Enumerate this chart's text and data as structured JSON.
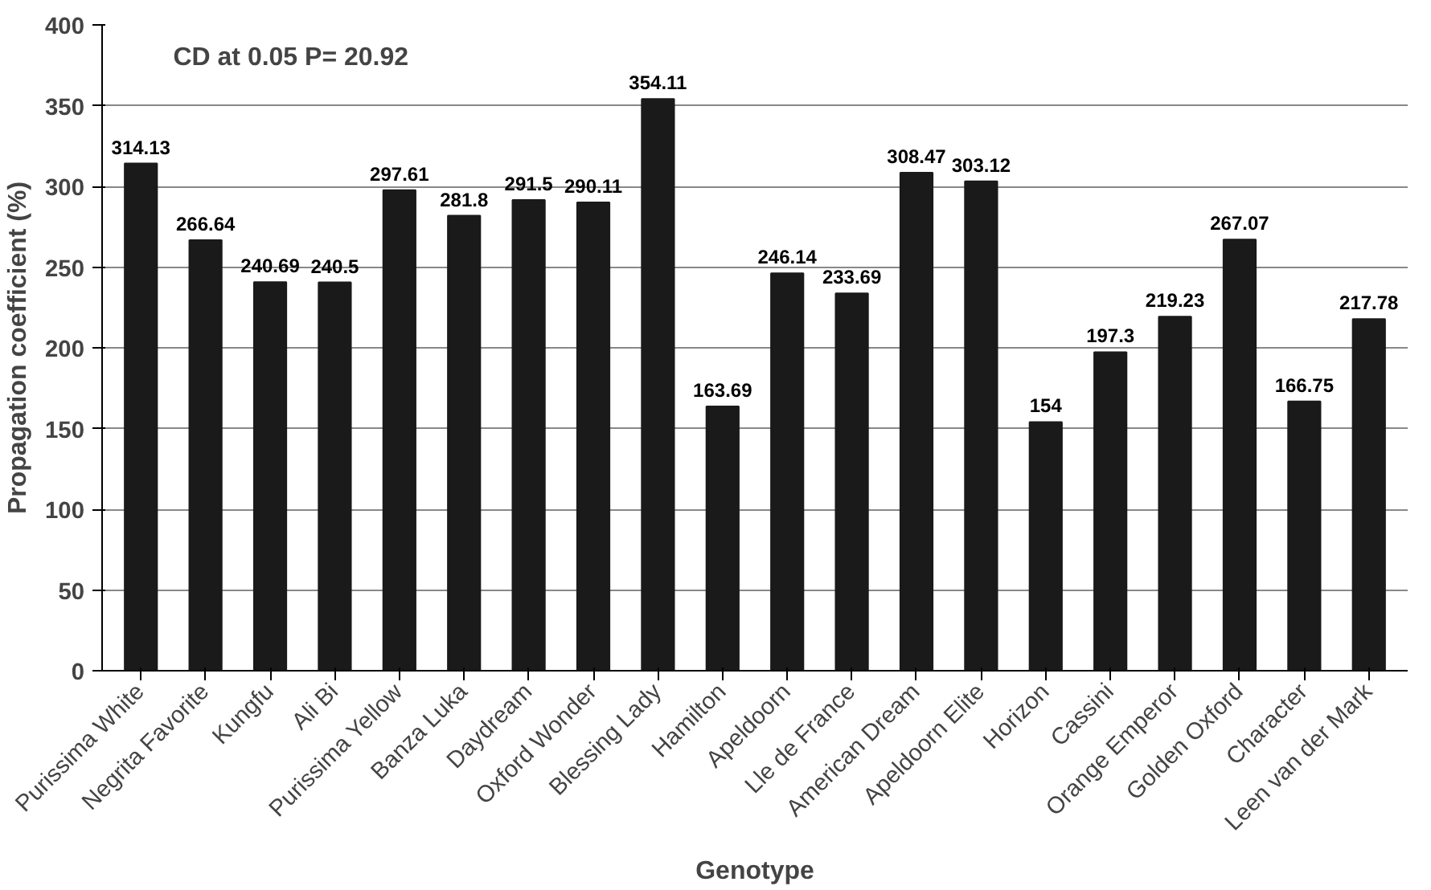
{
  "chart_data": {
    "type": "bar",
    "xlabel": "Genotype",
    "ylabel": "Propagation coefficient (%)",
    "categories": [
      "Purissima White",
      "Negrita Favorite",
      "Kungfu",
      "Ali Bi",
      "Purissima Yellow",
      "Banza Luka",
      "Daydream",
      "Oxford Wonder",
      "Blessing Lady",
      "Hamilton",
      "Apeldoorn",
      "Lle de France",
      "American Dream",
      "Apeldoorn Elite",
      "Horizon",
      "Cassini",
      "Orange Emperor",
      "Golden Oxford",
      "Character",
      "Leen van der Mark"
    ],
    "values": [
      314.13,
      266.64,
      240.69,
      240.5,
      297.61,
      281.8,
      291.5,
      290.11,
      354.11,
      163.69,
      246.14,
      233.69,
      308.47,
      303.12,
      154,
      197.3,
      219.23,
      267.07,
      166.75,
      217.78
    ],
    "color": "#1a1a1a",
    "ylim": [
      0,
      400
    ],
    "yticks": [
      0,
      50,
      100,
      150,
      200,
      250,
      300,
      350,
      400
    ],
    "grid": "y",
    "data_labels": true,
    "annotations": [
      "CD at  0.05 P= 20.92"
    ]
  }
}
